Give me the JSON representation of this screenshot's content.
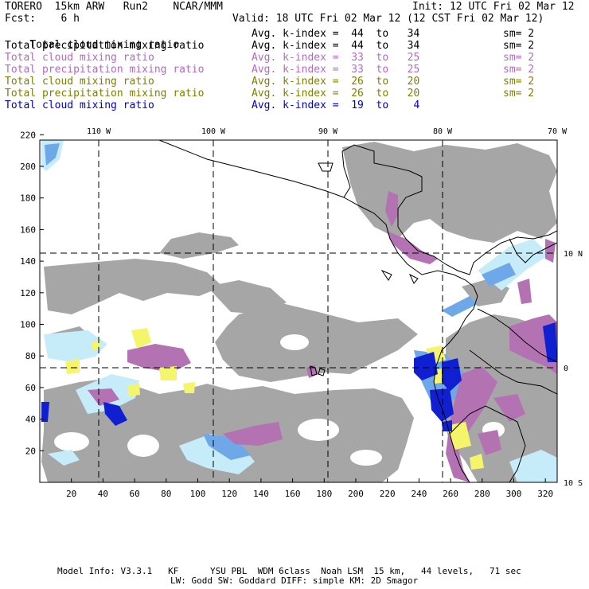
{
  "header": {
    "model": "TORERO  15km ARW   Run2    NCAR/MMM",
    "init": "Init: 12 UTC Fri 02 Mar 12",
    "fcst": "Fcst:    6 h",
    "valid": "Valid: 18 UTC Fri 02 Mar 12 (12 CST Fri 02 Mar 12)"
  },
  "fields": [
    {
      "name": "Total cloud mixing ratio",
      "kindex": "Avg. k-index =  44  to   34",
      "sm": "sm= 2",
      "color": "#000000"
    },
    {
      "name": "Total precipitation mixing ratio",
      "kindex": "Avg. k-index =  44  to   34",
      "sm": "sm= 2",
      "color": "#000000"
    },
    {
      "name": "Total cloud mixing ratio",
      "kindex": "Avg. k-index =  33  to   25",
      "sm": "sm= 2",
      "color": "#b36bbf"
    },
    {
      "name": "Total precipitation mixing ratio",
      "kindex": "Avg. k-index =  33  to   25",
      "sm": "sm= 2",
      "color": "#b36bbf"
    },
    {
      "name": "Total cloud mixing ratio",
      "kindex": "Avg. k-index =  26  to   20",
      "sm": "sm= 2",
      "color": "#7f7f00"
    },
    {
      "name": "Total precipitation mixing ratio",
      "kindex": "Avg. k-index =  26  to   20",
      "sm": "sm= 2",
      "color": "#7f7f00"
    },
    {
      "name": "Total cloud mixing ratio",
      "kindex": "Avg. k-index =  19  to    4",
      "sm": "",
      "color": "#0000cc"
    }
  ],
  "map": {
    "lon_labels": [
      "110 W",
      "100 W",
      "90 W",
      "80 W",
      "70 W"
    ],
    "lat_labels": [
      "10 N",
      "0",
      "10 S"
    ],
    "y_ticks": [
      "220",
      "200",
      "180",
      "160",
      "140",
      "120",
      "100",
      "80",
      "60",
      "40",
      "20"
    ],
    "x_ticks": [
      "20",
      "40",
      "60",
      "80",
      "100",
      "120",
      "140",
      "160",
      "180",
      "200",
      "220",
      "240",
      "260",
      "280",
      "300",
      "320"
    ],
    "colors": {
      "cloud_gray": "#a6a6a6",
      "purple": "#b373b3",
      "yellow": "#f5f56b",
      "light_blue": "#c6ecfa",
      "mid_blue": "#6fa8e8",
      "dark_blue": "#1020d0"
    }
  },
  "footer": {
    "line1": "Model Info: V3.3.1   KF      YSU PBL  WDM 6class  Noah LSM  15 km,   44 levels,   71 sec",
    "line2": "LW: Godd SW: Goddard DIFF: simple KM: 2D Smagor"
  }
}
